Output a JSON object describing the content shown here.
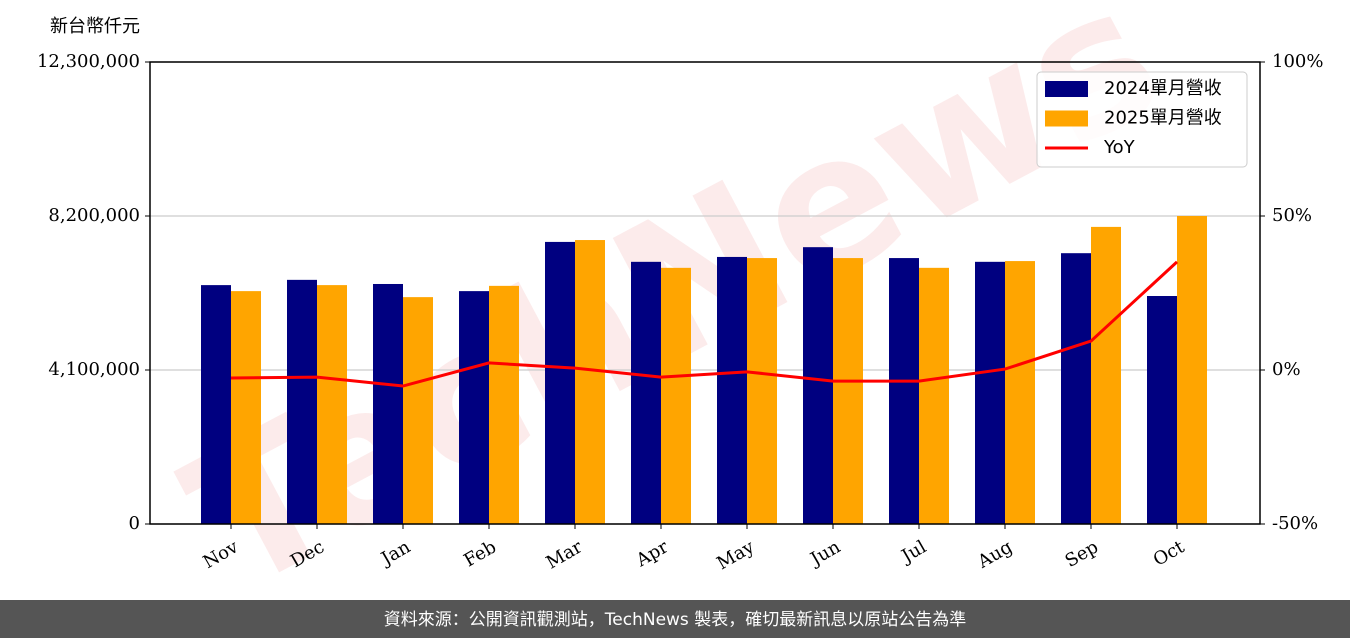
{
  "chart_data": {
    "type": "bar_line",
    "y_label": "新台幣仟元",
    "watermark": "TechNews",
    "categories": [
      "Nov",
      "Dec",
      "Jan",
      "Feb",
      "Mar",
      "Apr",
      "May",
      "Jun",
      "Jul",
      "Aug",
      "Sep",
      "Oct"
    ],
    "series": [
      {
        "name": "2024單月營收",
        "color": "#000080",
        "type": "bar",
        "values": [
          6360000,
          6500000,
          6390000,
          6200000,
          7510000,
          6980000,
          7110000,
          7370000,
          7080000,
          6980000,
          7210000,
          6070000
        ]
      },
      {
        "name": "2025單月營收",
        "color": "#ffa500",
        "type": "bar",
        "values": [
          6200000,
          6360000,
          6040000,
          6340000,
          7560000,
          6820000,
          7080000,
          7080000,
          6820000,
          7000000,
          7910000,
          8200000
        ]
      },
      {
        "name": "YoY",
        "color": "#ff0000",
        "type": "line",
        "axis": "y2",
        "values": [
          -2.6,
          -2.3,
          -5.2,
          2.3,
          0.6,
          -2.3,
          -0.6,
          -3.6,
          -3.6,
          0.3,
          9.4,
          35.1
        ]
      }
    ],
    "ylim": [
      0,
      12300000
    ],
    "yticks": [
      0,
      {
        "value": 4100000,
        "label": "4,100,000"
      },
      {
        "value": 8200000,
        "label": "8,200,000"
      },
      {
        "value": 12300000,
        "label": "12,300,000"
      }
    ],
    "y2lim": [
      -50,
      100
    ],
    "y2ticks": [
      {
        "value": -50,
        "label": "-50%"
      },
      {
        "value": 0,
        "label": "0%"
      },
      {
        "value": 50,
        "label": "50%"
      },
      {
        "value": 100,
        "label": "100%"
      }
    ],
    "grid": true,
    "legend": "upper right"
  },
  "footer": {
    "text": "資料來源：公開資訊觀測站，TechNews 製表，確切最新訊息以原站公告為準"
  }
}
